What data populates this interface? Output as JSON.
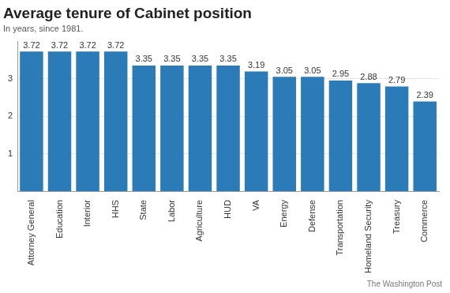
{
  "chart_data": {
    "type": "bar",
    "title": "Average tenure of Cabinet position",
    "subtitle": "In years, since 1981.",
    "source": "The Washington Post",
    "categories": [
      "Attorney General",
      "Education",
      "Interior",
      "HHS",
      "State",
      "Labor",
      "Agriculture",
      "HUD",
      "VA",
      "Energy",
      "Defense",
      "Transportation",
      "Homeland Security",
      "Treasury",
      "Commerce"
    ],
    "values": [
      3.72,
      3.72,
      3.72,
      3.72,
      3.35,
      3.35,
      3.35,
      3.35,
      3.19,
      3.05,
      3.05,
      2.95,
      2.88,
      2.79,
      2.39
    ],
    "color": "#2b7bb9",
    "ylim": [
      0,
      4
    ],
    "yticks": [
      1,
      2,
      3
    ],
    "grid": true,
    "data_labels": true
  }
}
